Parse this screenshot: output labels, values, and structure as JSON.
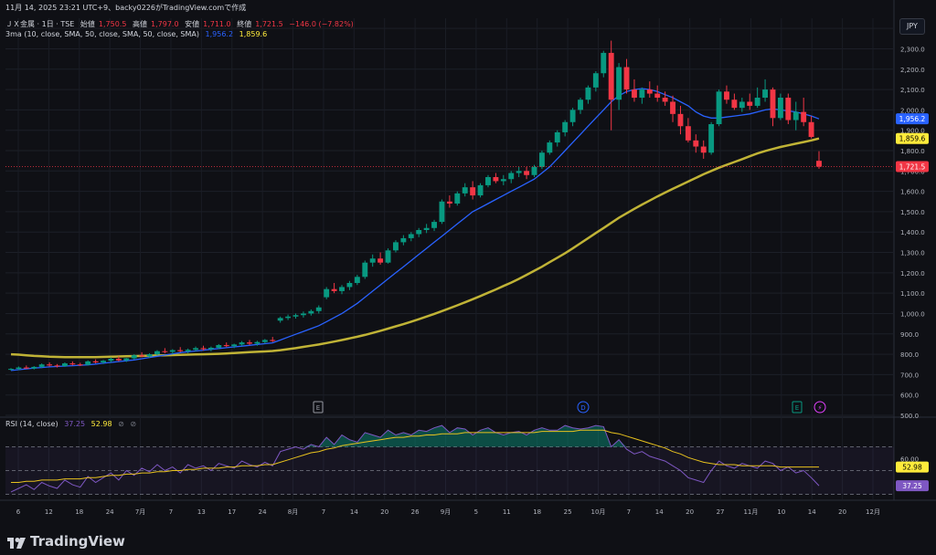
{
  "header": {
    "timestamp_line": "11月 14, 2025 23:21 UTC+9、backy0226がTradingView.comで作成",
    "symbol": "ＪＸ金属 · 1日 · TSE",
    "open_label": "始値",
    "open": "1,750.5",
    "high_label": "高値",
    "high": "1,797.0",
    "low_label": "安値",
    "low": "1,711.0",
    "close_label": "終値",
    "close": "1,721.5",
    "change": "−146.0 (−7.82%)",
    "ma_label": "3ma (10, close, SMA, 50, close, SMA, 50, close, SMA)",
    "ma10_value": "1,956.2",
    "ma50_value": "1,859.6"
  },
  "currency": "JPY",
  "rsi_label": "RSI (14, close)",
  "rsi_value": "37.25",
  "rsi_ma_value": "52.98",
  "brand": "TradingView",
  "markers": {
    "earnings": "E",
    "dividend": "D"
  },
  "colors": {
    "bg": "#0f1015",
    "up": "#089981",
    "down": "#f23645",
    "ma10": "#2962ff",
    "ma50": "#c0b336",
    "rsi": "#7e57c2",
    "rsima": "#e8c21e"
  },
  "chart_data": [
    {
      "type": "candlestick",
      "y_ticks": [
        "2,400.0",
        "2,300.0",
        "2,200.0",
        "2,100.0",
        "2,000.0",
        "1,900.0",
        "1,800.0",
        "1,700.0",
        "1,600.0",
        "1,500.0",
        "1,400.0",
        "1,300.0",
        "1,200.0",
        "1,100.0",
        "1,000.0",
        "900.0",
        "800.0",
        "700.0",
        "600.0",
        "500.0"
      ],
      "ylim": [
        500,
        2450
      ],
      "x_ticks": [
        "6",
        "12",
        "18",
        "24",
        "7月",
        "7",
        "13",
        "17",
        "24",
        "8月",
        "7",
        "14",
        "20",
        "26",
        "9月",
        "5",
        "11",
        "18",
        "25",
        "10月",
        "7",
        "14",
        "20",
        "27",
        "11月",
        "10",
        "14",
        "20",
        "12月"
      ],
      "price_labels": {
        "ma10": "1,956.2",
        "ma50": "1,859.6",
        "last": "1,721.5"
      },
      "candles": [
        [
          725,
          732,
          720,
          728
        ],
        [
          728,
          740,
          722,
          735
        ],
        [
          735,
          745,
          728,
          730
        ],
        [
          730,
          742,
          725,
          738
        ],
        [
          738,
          755,
          732,
          750
        ],
        [
          750,
          760,
          740,
          745
        ],
        [
          745,
          752,
          735,
          742
        ],
        [
          742,
          760,
          738,
          755
        ],
        [
          755,
          765,
          745,
          750
        ],
        [
          750,
          758,
          742,
          748
        ],
        [
          748,
          770,
          745,
          765
        ],
        [
          765,
          775,
          755,
          760
        ],
        [
          760,
          772,
          752,
          768
        ],
        [
          768,
          785,
          760,
          778
        ],
        [
          778,
          790,
          765,
          770
        ],
        [
          770,
          782,
          762,
          780
        ],
        [
          780,
          800,
          775,
          795
        ],
        [
          795,
          810,
          785,
          790
        ],
        [
          790,
          805,
          782,
          800
        ],
        [
          800,
          820,
          795,
          815
        ],
        [
          815,
          830,
          805,
          812
        ],
        [
          812,
          825,
          800,
          820
        ],
        [
          820,
          835,
          810,
          815
        ],
        [
          815,
          828,
          805,
          822
        ],
        [
          822,
          838,
          815,
          830
        ],
        [
          830,
          842,
          818,
          825
        ],
        [
          825,
          838,
          815,
          832
        ],
        [
          832,
          850,
          825,
          845
        ],
        [
          845,
          858,
          835,
          840
        ],
        [
          840,
          852,
          830,
          848
        ],
        [
          848,
          865,
          840,
          858
        ],
        [
          858,
          870,
          845,
          852
        ],
        [
          852,
          866,
          842,
          860
        ],
        [
          860,
          875,
          852,
          870
        ],
        [
          870,
          885,
          860,
          865
        ],
        [
          965,
          985,
          955,
          978
        ],
        [
          978,
          995,
          968,
          985
        ],
        [
          985,
          1000,
          975,
          992
        ],
        [
          992,
          1010,
          980,
          1000
        ],
        [
          1000,
          1020,
          990,
          1012
        ],
        [
          1012,
          1040,
          1000,
          1030
        ],
        [
          1080,
          1130,
          1070,
          1120
        ],
        [
          1120,
          1150,
          1100,
          1110
        ],
        [
          1110,
          1140,
          1095,
          1130
        ],
        [
          1130,
          1160,
          1115,
          1150
        ],
        [
          1150,
          1190,
          1140,
          1180
        ],
        [
          1180,
          1260,
          1170,
          1250
        ],
        [
          1250,
          1290,
          1230,
          1270
        ],
        [
          1270,
          1300,
          1240,
          1250
        ],
        [
          1250,
          1320,
          1245,
          1310
        ],
        [
          1310,
          1360,
          1300,
          1350
        ],
        [
          1350,
          1385,
          1335,
          1370
        ],
        [
          1370,
          1400,
          1355,
          1390
        ],
        [
          1390,
          1420,
          1375,
          1410
        ],
        [
          1410,
          1440,
          1395,
          1420
        ],
        [
          1420,
          1460,
          1405,
          1450
        ],
        [
          1450,
          1560,
          1440,
          1550
        ],
        [
          1550,
          1580,
          1520,
          1540
        ],
        [
          1540,
          1600,
          1530,
          1590
        ],
        [
          1590,
          1640,
          1575,
          1620
        ],
        [
          1620,
          1650,
          1560,
          1580
        ],
        [
          1580,
          1640,
          1570,
          1630
        ],
        [
          1630,
          1680,
          1620,
          1670
        ],
        [
          1670,
          1690,
          1640,
          1650
        ],
        [
          1650,
          1680,
          1630,
          1660
        ],
        [
          1660,
          1700,
          1640,
          1690
        ],
        [
          1690,
          1720,
          1670,
          1700
        ],
        [
          1700,
          1720,
          1660,
          1680
        ],
        [
          1680,
          1730,
          1670,
          1720
        ],
        [
          1720,
          1800,
          1710,
          1790
        ],
        [
          1790,
          1850,
          1780,
          1840
        ],
        [
          1840,
          1900,
          1820,
          1890
        ],
        [
          1890,
          1950,
          1870,
          1940
        ],
        [
          1940,
          2010,
          1920,
          2000
        ],
        [
          2000,
          2060,
          1980,
          2050
        ],
        [
          2050,
          2120,
          2030,
          2110
        ],
        [
          2110,
          2190,
          2090,
          2180
        ],
        [
          2180,
          2290,
          2160,
          2280
        ],
        [
          2280,
          2340,
          1900,
          2050
        ],
        [
          2050,
          2230,
          2000,
          2210
        ],
        [
          2210,
          2250,
          2080,
          2100
        ],
        [
          2100,
          2150,
          2040,
          2060
        ],
        [
          2060,
          2110,
          2030,
          2100
        ],
        [
          2100,
          2140,
          2060,
          2080
        ],
        [
          2080,
          2120,
          2040,
          2060
        ],
        [
          2060,
          2090,
          2020,
          2040
        ],
        [
          2040,
          2070,
          1940,
          1980
        ],
        [
          1980,
          2020,
          1880,
          1920
        ],
        [
          1920,
          1960,
          1840,
          1850
        ],
        [
          1850,
          1880,
          1790,
          1820
        ],
        [
          1820,
          1850,
          1760,
          1790
        ],
        [
          1790,
          1940,
          1780,
          1930
        ],
        [
          1930,
          2100,
          1920,
          2090
        ],
        [
          2090,
          2120,
          2030,
          2050
        ],
        [
          2050,
          2080,
          2000,
          2010
        ],
        [
          2010,
          2060,
          1990,
          2040
        ],
        [
          2040,
          2080,
          2000,
          2020
        ],
        [
          2020,
          2110,
          2010,
          2060
        ],
        [
          2060,
          2150,
          2040,
          2100
        ],
        [
          2100,
          2110,
          1920,
          1960
        ],
        [
          1960,
          2080,
          1950,
          2060
        ],
        [
          2060,
          2080,
          1930,
          1950
        ],
        [
          1950,
          2040,
          1900,
          1990
        ],
        [
          1990,
          2060,
          1920,
          1940
        ],
        [
          1940,
          1970,
          1860,
          1867
        ],
        [
          1750,
          1797,
          1711,
          1721
        ]
      ],
      "ma10": [
        720,
        724,
        728,
        732,
        735,
        738,
        740,
        742,
        744,
        746,
        748,
        752,
        756,
        760,
        764,
        768,
        772,
        778,
        784,
        790,
        796,
        802,
        808,
        812,
        816,
        820,
        824,
        828,
        832,
        836,
        840,
        844,
        848,
        852,
        856,
        870,
        884,
        898,
        912,
        926,
        940,
        960,
        980,
        1000,
        1025,
        1050,
        1080,
        1110,
        1140,
        1170,
        1200,
        1230,
        1260,
        1290,
        1320,
        1350,
        1380,
        1410,
        1440,
        1470,
        1500,
        1520,
        1540,
        1560,
        1580,
        1600,
        1620,
        1640,
        1660,
        1690,
        1720,
        1760,
        1800,
        1840,
        1880,
        1920,
        1960,
        2000,
        2040,
        2070,
        2090,
        2100,
        2105,
        2100,
        2090,
        2075,
        2060,
        2040,
        2020,
        1990,
        1970,
        1960,
        1960,
        1965,
        1970,
        1975,
        1980,
        1990,
        2000,
        2005,
        2000,
        1995,
        1990,
        1980,
        1970,
        1956
      ],
      "ma50": [
        800,
        798,
        795,
        792,
        790,
        788,
        787,
        786,
        786,
        786,
        786,
        786,
        787,
        788,
        789,
        790,
        791,
        792,
        793,
        794,
        795,
        796,
        797,
        798,
        799,
        800,
        801,
        802,
        804,
        806,
        808,
        810,
        812,
        814,
        816,
        820,
        825,
        830,
        836,
        842,
        848,
        855,
        862,
        870,
        878,
        886,
        895,
        905,
        915,
        926,
        937,
        948,
        960,
        972,
        985,
        998,
        1012,
        1026,
        1040,
        1055,
        1070,
        1086,
        1102,
        1118,
        1135,
        1152,
        1170,
        1190,
        1210,
        1230,
        1252,
        1274,
        1296,
        1320,
        1345,
        1370,
        1395,
        1420,
        1445,
        1470,
        1492,
        1514,
        1535,
        1555,
        1575,
        1594,
        1612,
        1630,
        1648,
        1666,
        1684,
        1700,
        1716,
        1730,
        1744,
        1758,
        1772,
        1786,
        1798,
        1808,
        1818,
        1826,
        1834,
        1842,
        1850,
        1859.6
      ]
    },
    {
      "type": "line",
      "title": "RSI (14, close)",
      "y_ticks": [
        "60.00"
      ],
      "levels": [
        70,
        50,
        30
      ],
      "ylim": [
        25,
        95
      ],
      "rsi": [
        32,
        35,
        38,
        34,
        40,
        37,
        35,
        42,
        38,
        36,
        45,
        40,
        44,
        48,
        42,
        50,
        46,
        52,
        49,
        55,
        50,
        53,
        48,
        55,
        52,
        54,
        50,
        56,
        54,
        52,
        58,
        55,
        53,
        57,
        54,
        66,
        68,
        70,
        68,
        72,
        70,
        78,
        72,
        80,
        76,
        74,
        82,
        80,
        78,
        84,
        80,
        82,
        80,
        84,
        83,
        86,
        88,
        82,
        86,
        85,
        80,
        84,
        86,
        82,
        80,
        82,
        83,
        80,
        84,
        86,
        84,
        84,
        88,
        86,
        85,
        86,
        88,
        87,
        70,
        76,
        68,
        64,
        66,
        62,
        60,
        58,
        54,
        50,
        44,
        42,
        40,
        50,
        58,
        54,
        52,
        56,
        54,
        52,
        58,
        56,
        50,
        53,
        48,
        50,
        44,
        37.25
      ],
      "rsi_ma": [
        40,
        40,
        41,
        41,
        42,
        42,
        42,
        43,
        43,
        43,
        44,
        44,
        45,
        46,
        46,
        47,
        47,
        48,
        48,
        49,
        49,
        50,
        50,
        51,
        51,
        52,
        52,
        52,
        53,
        53,
        54,
        54,
        54,
        55,
        55,
        57,
        59,
        61,
        63,
        65,
        66,
        68,
        69,
        71,
        72,
        73,
        74,
        75,
        76,
        77,
        78,
        78,
        79,
        79,
        80,
        80,
        81,
        81,
        81,
        82,
        82,
        82,
        82,
        82,
        82,
        82,
        82,
        82,
        82,
        83,
        83,
        83,
        83,
        83,
        84,
        84,
        84,
        84,
        82,
        81,
        79,
        77,
        75,
        73,
        71,
        69,
        66,
        64,
        61,
        59,
        57,
        56,
        55,
        55,
        55,
        54,
        54,
        54,
        54,
        54,
        53,
        53,
        53,
        53,
        53,
        52.98
      ]
    }
  ]
}
